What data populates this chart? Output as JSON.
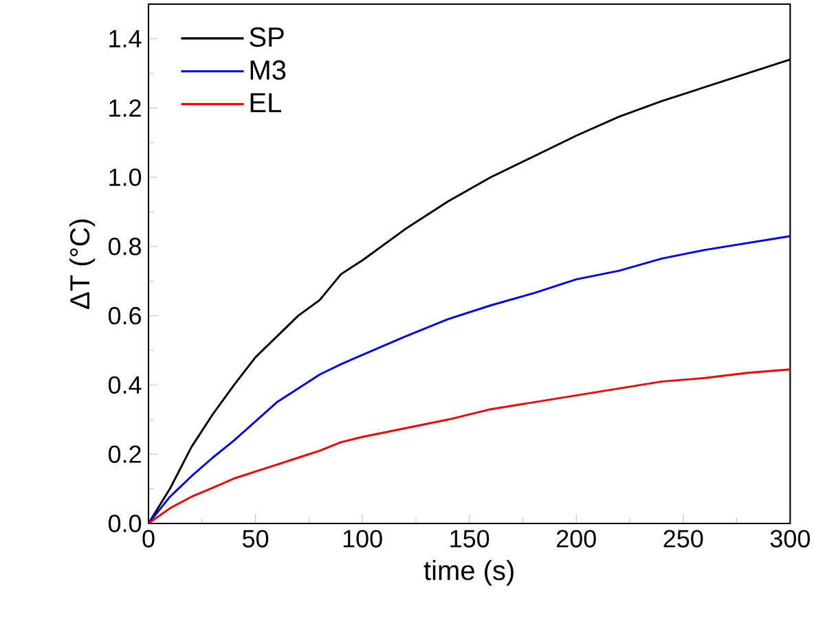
{
  "chart_data": {
    "type": "line",
    "xlabel": "time (s)",
    "ylabel": "ΔT (°C)",
    "xlim": [
      0,
      300
    ],
    "ylim": [
      0,
      1.5
    ],
    "xticks": [
      0,
      50,
      100,
      150,
      200,
      250,
      300
    ],
    "yticks": [
      {
        "value": 0,
        "label": "0.0"
      },
      0.2,
      0.4,
      0.6,
      0.8,
      {
        "value": 1,
        "label": "1.0"
      },
      1.2,
      1.4
    ],
    "legend": "top left",
    "grid": false,
    "x": [
      0,
      10,
      20,
      30,
      40,
      50,
      60,
      70,
      80,
      90,
      100,
      120,
      140,
      160,
      180,
      200,
      220,
      240,
      260,
      280,
      300
    ],
    "series": [
      {
        "name": "SP",
        "color": "#000000",
        "values": [
          0,
          0.1,
          0.22,
          0.315,
          0.4,
          0.48,
          0.54,
          0.6,
          0.645,
          0.72,
          0.76,
          0.85,
          0.93,
          1.0,
          1.06,
          1.12,
          1.175,
          1.22,
          1.26,
          1.3,
          1.34
        ]
      },
      {
        "name": "M3",
        "color": "#0000ff",
        "values": [
          0,
          0.077,
          0.136,
          0.19,
          0.24,
          0.295,
          0.35,
          0.39,
          0.43,
          0.46,
          0.487,
          0.54,
          0.59,
          0.63,
          0.665,
          0.705,
          0.73,
          0.765,
          0.79,
          0.81,
          0.83
        ]
      },
      {
        "name": "EL",
        "color": "#ff0000",
        "values": [
          0,
          0.044,
          0.077,
          0.103,
          0.13,
          0.15,
          0.17,
          0.19,
          0.21,
          0.235,
          0.25,
          0.275,
          0.3,
          0.33,
          0.35,
          0.37,
          0.39,
          0.41,
          0.42,
          0.435,
          0.445
        ]
      }
    ]
  }
}
